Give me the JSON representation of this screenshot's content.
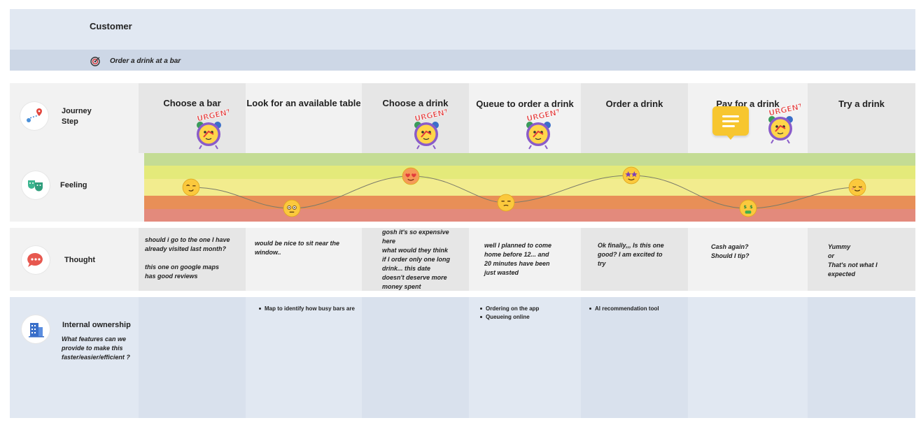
{
  "header": {
    "persona": "Customer",
    "goal": "Order a drink at a bar"
  },
  "rows": {
    "journey": "Journey\nStep",
    "feeling": "Feeling",
    "thought": "Thought",
    "ownership": "Internal ownership",
    "ownership_sub": "What features can we provide to make this faster/easier/efficient ?"
  },
  "stages": [
    {
      "title": "Choose a bar",
      "urgent": true,
      "feeling": "smirk",
      "thought": "should i go to the one I have\n already visited last month?\n\nthis one on google maps\nhas good reviews",
      "features": []
    },
    {
      "title": "Look for an available table",
      "urgent": false,
      "feeling": "worried",
      "thought": "would be nice to sit near the\nwindow..",
      "features": [
        "Map to identify how busy bars are"
      ]
    },
    {
      "title": "Choose a drink",
      "urgent": true,
      "feeling": "heart-eyes",
      "thought": "gosh it's so expensive\nhere\nwhat would they think\nif I order only one long\ndrink... this date\ndoesn't deserve more\nmoney spent",
      "features": []
    },
    {
      "title": "Queue to order a drink",
      "urgent": true,
      "feeling": "unamused",
      "thought": "well I planned to come\nhome before 12... and\n20 minutes have been\njust wasted",
      "features": [
        "Ordering on the app",
        "Queueing online"
      ]
    },
    {
      "title": "Order a drink",
      "urgent": false,
      "feeling": "star-struck",
      "thought": "Ok finally,,, Is this one\ngood? I am excited to\ntry",
      "features": [
        "AI recommendation tool"
      ]
    },
    {
      "title": "Pay for a drink",
      "urgent": true,
      "feeling": "money-mouth",
      "thought": "Cash again?\nShould I tip?",
      "features": []
    },
    {
      "title": "Try a drink",
      "urgent": false,
      "feeling": "relieved",
      "thought": "Yummy\nor\nThat's not what I\nexpected",
      "features": []
    }
  ],
  "urgent_label": "URGENT!",
  "colors": {
    "band_top": "#e1e8f2",
    "band_sub": "#cdd7e6",
    "shade": "#eeeeee",
    "feel_1": "#c4dc94",
    "feel_2": "#e4ea7a",
    "feel_3": "#f2ec8e",
    "feel_4": "#e88f57",
    "feel_5": "#e38a7c",
    "sticky": "#f7c62f"
  }
}
